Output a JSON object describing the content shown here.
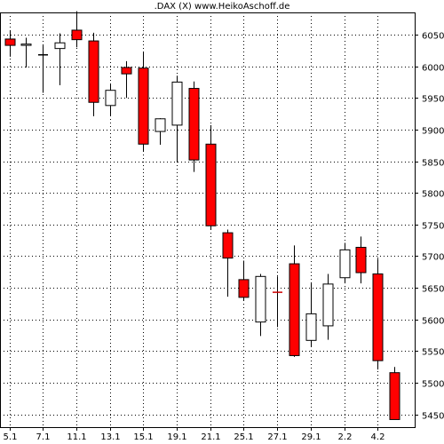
{
  "chart_data": {
    "type": "candlestick",
    "title": ".DAX (X)  www.HeikoAschoff.de",
    "ylim": [
      5430,
      6085
    ],
    "y_ticks": [
      5450,
      5500,
      5550,
      5600,
      5650,
      5700,
      5750,
      5800,
      5850,
      5900,
      5950,
      6000,
      6050
    ],
    "y_axis_position": "right",
    "x_tick_labels": [
      "5.1",
      "7.1",
      "11.1",
      "13.1",
      "15.1",
      "19.1",
      "21.1",
      "25.1",
      "27.1",
      "29.1",
      "2.2",
      "4.2"
    ],
    "grid": true,
    "colors": {
      "down": "#ff0000",
      "up": "#ffffff",
      "outline": "#000000",
      "grid": "#000000",
      "doji": "#cc0000"
    },
    "candles": [
      {
        "open": 6043,
        "high": 6057,
        "low": 6015,
        "close": 6033
      },
      {
        "open": 6033,
        "high": 6045,
        "low": 5998,
        "close": 6035
      },
      {
        "open": 6018,
        "high": 6033,
        "low": 5958,
        "close": 6018
      },
      {
        "open": 6028,
        "high": 6052,
        "low": 5970,
        "close": 6037
      },
      {
        "open": 6057,
        "high": 6087,
        "low": 6030,
        "close": 6042
      },
      {
        "open": 6040,
        "high": 6053,
        "low": 5921,
        "close": 5943
      },
      {
        "open": 5938,
        "high": 5972,
        "low": 5922,
        "close": 5962
      },
      {
        "open": 5998,
        "high": 6008,
        "low": 5950,
        "close": 5988
      },
      {
        "open": 5997,
        "high": 6022,
        "low": 5866,
        "close": 5877
      },
      {
        "open": 5897,
        "high": 5918,
        "low": 5876,
        "close": 5917
      },
      {
        "open": 5907,
        "high": 5985,
        "low": 5849,
        "close": 5975
      },
      {
        "open": 5965,
        "high": 5976,
        "low": 5833,
        "close": 5852
      },
      {
        "open": 5877,
        "high": 5907,
        "low": 5742,
        "close": 5748
      },
      {
        "open": 5737,
        "high": 5742,
        "low": 5636,
        "close": 5697
      },
      {
        "open": 5663,
        "high": 5693,
        "low": 5630,
        "close": 5635
      },
      {
        "open": 5596,
        "high": 5672,
        "low": 5574,
        "close": 5668
      },
      {
        "open": 5643,
        "high": 5668,
        "low": 5588,
        "close": 5643
      },
      {
        "open": 5688,
        "high": 5717,
        "low": 5541,
        "close": 5543
      },
      {
        "open": 5567,
        "high": 5657,
        "low": 5557,
        "close": 5609
      },
      {
        "open": 5590,
        "high": 5672,
        "low": 5568,
        "close": 5656
      },
      {
        "open": 5666,
        "high": 5721,
        "low": 5657,
        "close": 5710
      },
      {
        "open": 5714,
        "high": 5731,
        "low": 5657,
        "close": 5674
      },
      {
        "open": 5672,
        "high": 5696,
        "low": 5521,
        "close": 5535
      },
      {
        "open": 5516,
        "high": 5525,
        "low": 5442,
        "close": 5442
      }
    ]
  }
}
